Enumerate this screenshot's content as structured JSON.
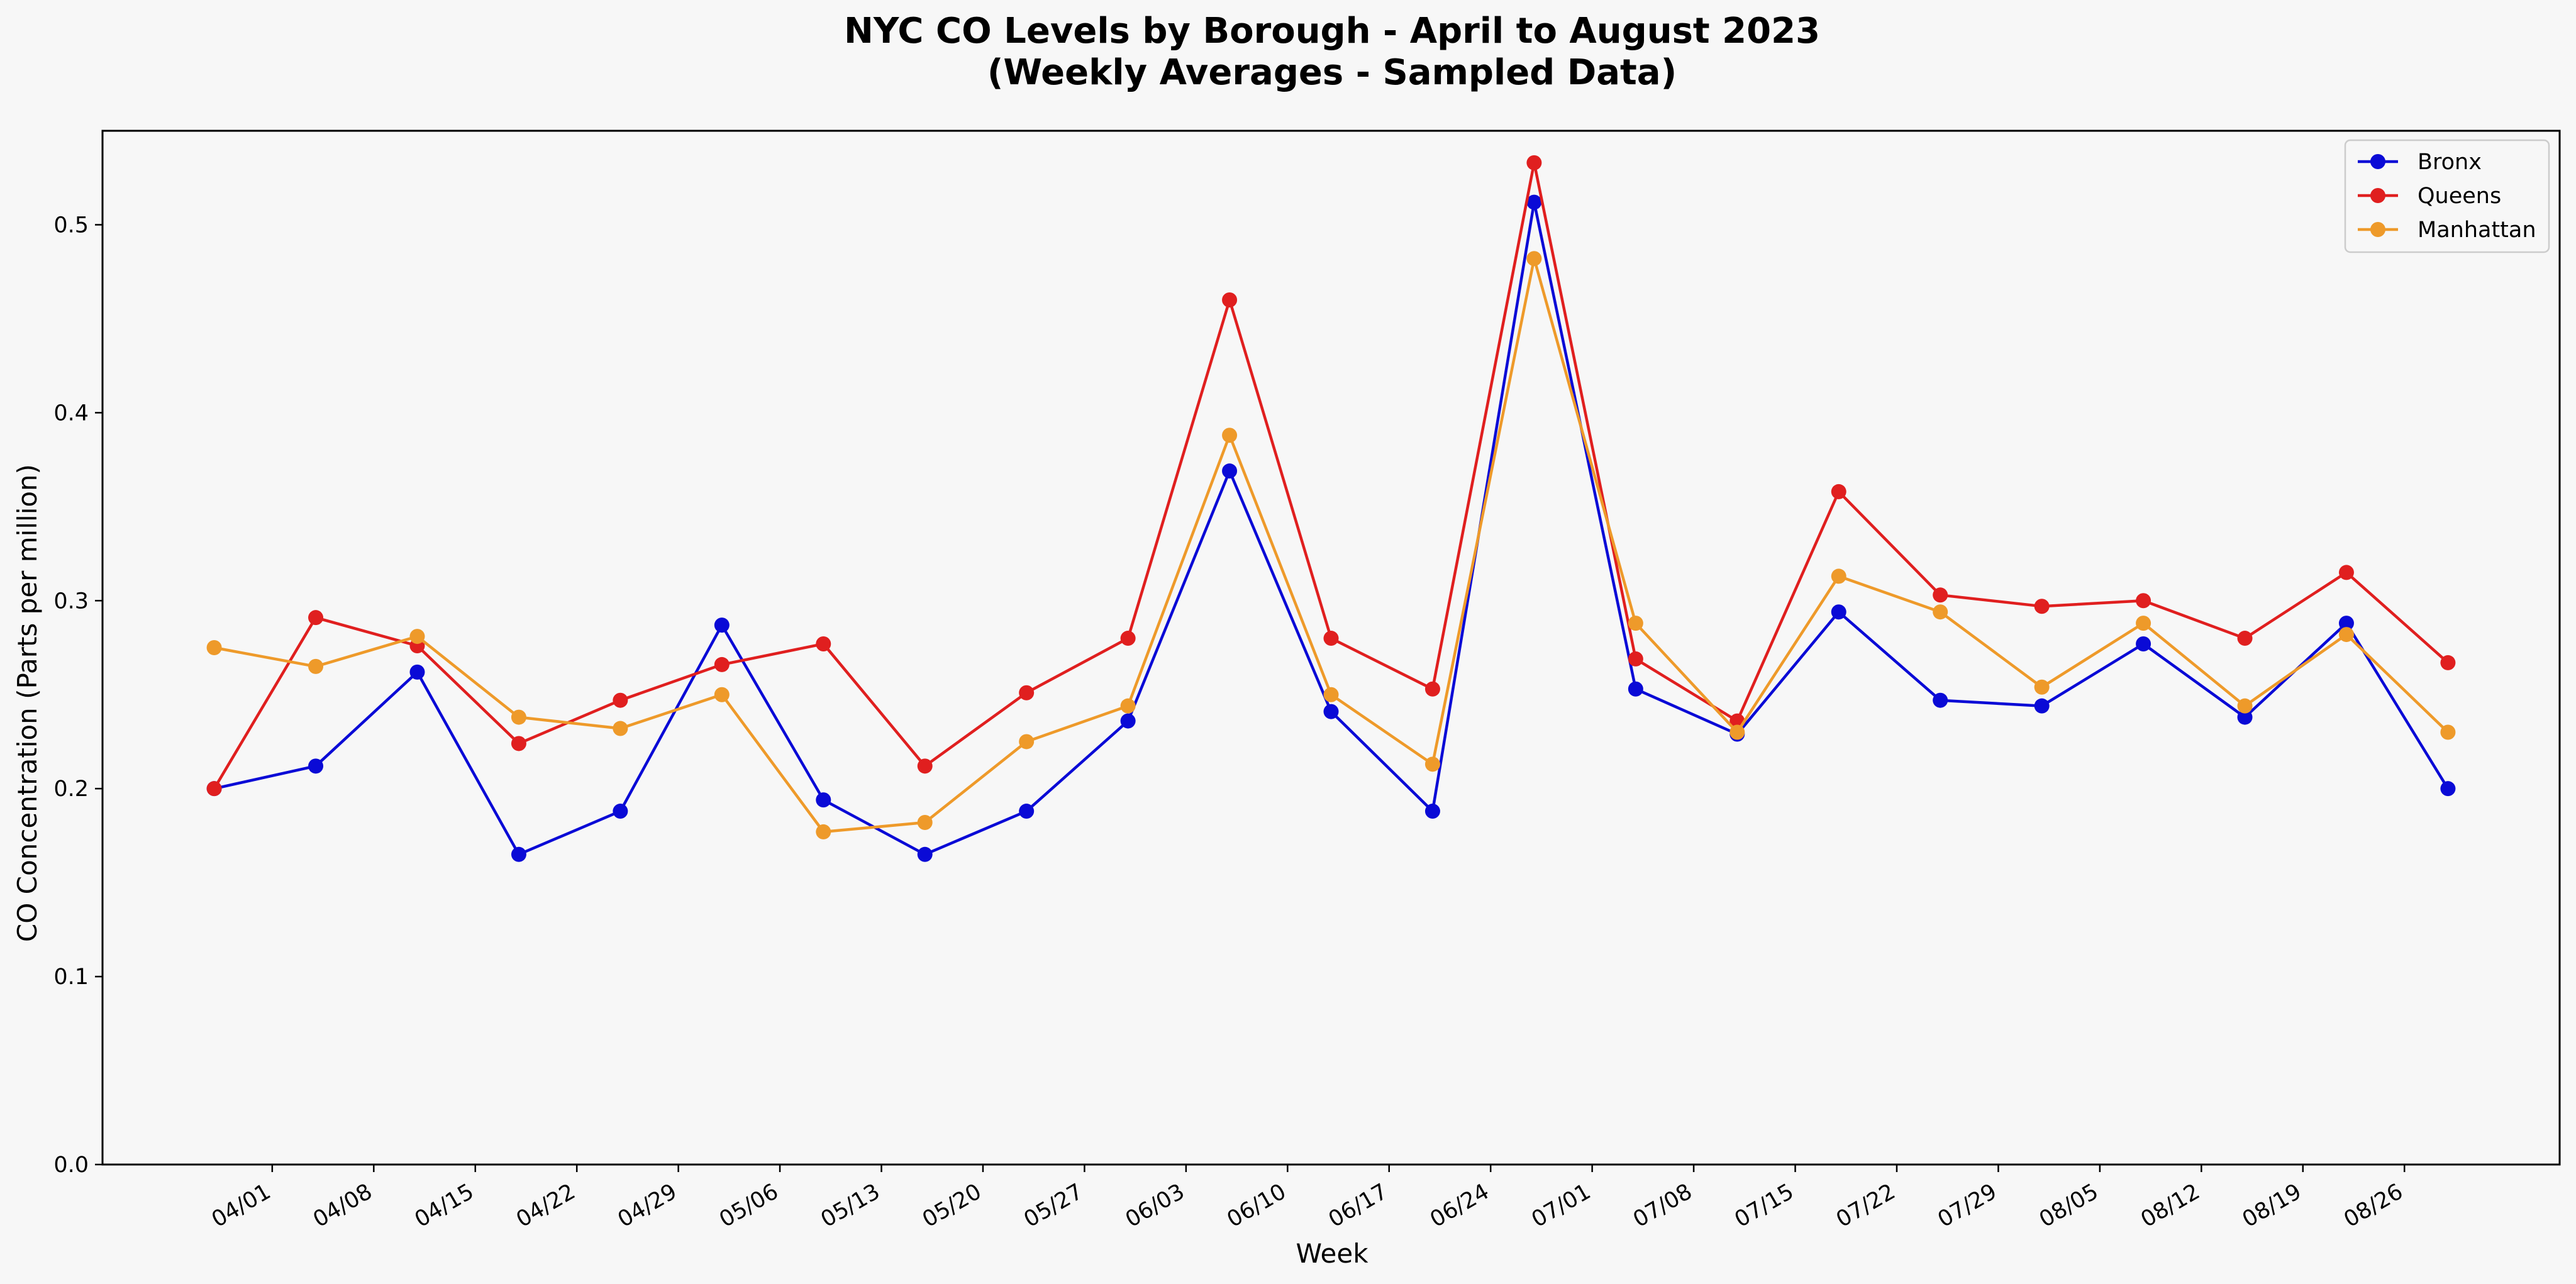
{
  "chart_data": {
    "type": "line",
    "title_line1": "NYC CO Levels by Borough - April to August 2023",
    "title_line2": "(Weekly Averages - Sampled Data)",
    "xlabel": "Week",
    "ylabel": "CO Concentration (Parts per million)",
    "ylim": [
      0.0,
      0.55
    ],
    "yticks": [
      "0.0",
      "0.1",
      "0.2",
      "0.3",
      "0.4",
      "0.5"
    ],
    "xticks": [
      "04/01",
      "04/08",
      "04/15",
      "04/22",
      "04/29",
      "05/06",
      "05/13",
      "05/20",
      "05/27",
      "06/03",
      "06/10",
      "06/17",
      "06/24",
      "07/01",
      "07/08",
      "07/15",
      "07/22",
      "07/29",
      "08/05",
      "08/12",
      "08/19",
      "08/26"
    ],
    "x": [
      "2023-03-28",
      "2023-04-04",
      "2023-04-11",
      "2023-04-18",
      "2023-04-25",
      "2023-05-02",
      "2023-05-09",
      "2023-05-16",
      "2023-05-23",
      "2023-05-30",
      "2023-06-06",
      "2023-06-13",
      "2023-06-20",
      "2023-06-27",
      "2023-07-04",
      "2023-07-11",
      "2023-07-18",
      "2023-07-25",
      "2023-08-01",
      "2023-08-08",
      "2023-08-15",
      "2023-08-22",
      "2023-08-29"
    ],
    "grid": false,
    "legend_position": "top-right",
    "series": [
      {
        "name": "Bronx",
        "color": "#0a0ad6",
        "values": [
          0.2,
          0.212,
          0.262,
          0.165,
          0.188,
          0.287,
          0.194,
          0.165,
          0.188,
          0.236,
          0.369,
          0.241,
          0.188,
          0.512,
          0.253,
          0.229,
          0.294,
          0.247,
          0.244,
          0.277,
          0.238,
          0.288,
          0.2
        ]
      },
      {
        "name": "Queens",
        "color": "#e01f1f",
        "values": [
          0.2,
          0.291,
          0.276,
          0.224,
          0.247,
          0.266,
          0.277,
          0.212,
          0.251,
          0.28,
          0.46,
          0.28,
          0.253,
          0.533,
          0.269,
          0.236,
          0.358,
          0.303,
          0.297,
          0.3,
          0.28,
          0.315,
          0.267
        ]
      },
      {
        "name": "Manhattan",
        "color": "#ee9a2a",
        "values": [
          0.275,
          0.265,
          0.281,
          0.238,
          0.232,
          0.25,
          0.177,
          0.182,
          0.225,
          0.244,
          0.388,
          0.25,
          0.213,
          0.482,
          0.288,
          0.23,
          0.313,
          0.294,
          0.254,
          0.288,
          0.244,
          0.282,
          0.23
        ]
      }
    ]
  }
}
